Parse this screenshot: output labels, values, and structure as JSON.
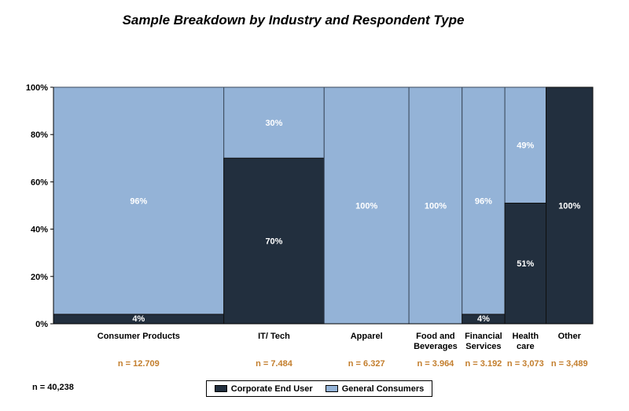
{
  "chart_data": {
    "type": "bar",
    "title": "Sample Breakdown by Industry and Respondent Type",
    "total_label": "n = 40,238",
    "ylim": [
      0,
      100
    ],
    "y_ticks": [
      "0%",
      "20%",
      "40%",
      "60%",
      "80%",
      "100%"
    ],
    "legend_position": "bottom",
    "colors": {
      "corporate": "#222f3e",
      "consumers": "#94b3d7",
      "n_label": "#c37e2d"
    },
    "categories": [
      {
        "name": "Consumer Products",
        "lines": [
          "Consumer Products"
        ],
        "n_label": "n = 12.709",
        "n": 12709,
        "corporate": 4,
        "consumers": 96,
        "corporate_label": "4%",
        "consumers_label": "96%"
      },
      {
        "name": "IT/ Tech",
        "lines": [
          "IT/ Tech"
        ],
        "n_label": "n = 7.484",
        "n": 7484,
        "corporate": 70,
        "consumers": 30,
        "corporate_label": "70%",
        "consumers_label": "30%"
      },
      {
        "name": "Apparel",
        "lines": [
          "Apparel"
        ],
        "n_label": "n = 6.327",
        "n": 6327,
        "corporate": 0,
        "consumers": 100,
        "corporate_label": "",
        "consumers_label": "100%"
      },
      {
        "name": "Food and Beverages",
        "lines": [
          "Food and",
          "Beverages"
        ],
        "n_label": "n = 3.964",
        "n": 3964,
        "corporate": 0,
        "consumers": 100,
        "corporate_label": "",
        "consumers_label": "100%"
      },
      {
        "name": "Financial Services",
        "lines": [
          "Financial",
          "Services"
        ],
        "n_label": "n = 3.192",
        "n": 3192,
        "corporate": 4,
        "consumers": 96,
        "corporate_label": "4%",
        "consumers_label": "96%"
      },
      {
        "name": "Health care",
        "lines": [
          "Health",
          "care"
        ],
        "n_label": "n = 3,073",
        "n": 3073,
        "corporate": 51,
        "consumers": 49,
        "corporate_label": "51%",
        "consumers_label": "49%"
      },
      {
        "name": "Other",
        "lines": [
          "Other"
        ],
        "n_label": "n = 3,489",
        "n": 3489,
        "corporate": 100,
        "consumers": 0,
        "corporate_label": "100%",
        "consumers_label": ""
      }
    ],
    "series": [
      {
        "name": "Corporate End User",
        "key": "corporate"
      },
      {
        "name": "General Consumers",
        "key": "consumers"
      }
    ]
  }
}
